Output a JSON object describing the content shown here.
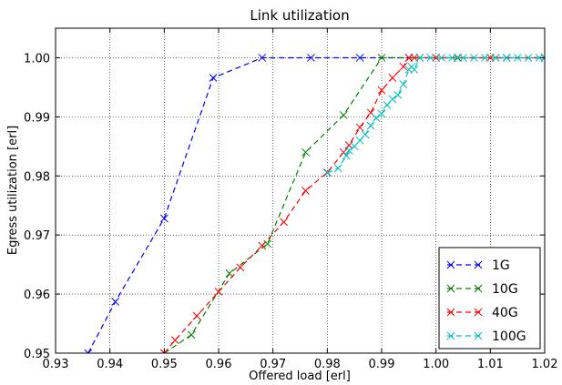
{
  "chart_data": {
    "type": "line",
    "title": "Link utilization",
    "xlabel": "Offered load [erl]",
    "ylabel": "Egress utilization [erl]",
    "xlim": [
      0.93,
      1.02
    ],
    "ylim": [
      0.95,
      1.005
    ],
    "xticks": [
      "0.93",
      "0.94",
      "0.95",
      "0.96",
      "0.97",
      "0.98",
      "0.99",
      "1.00",
      "1.01",
      "1.02"
    ],
    "yticks": [
      "0.95",
      "0.96",
      "0.97",
      "0.98",
      "0.99",
      "1.00"
    ],
    "grid": true,
    "legend_position": "bottom-right",
    "series": [
      {
        "name": "1G",
        "color": "#0000ff",
        "points": [
          [
            0.936,
            0.95
          ],
          [
            0.941,
            0.9587
          ],
          [
            0.95,
            0.9728
          ],
          [
            0.959,
            0.9966
          ],
          [
            0.968,
            1.0
          ],
          [
            0.977,
            1.0
          ],
          [
            0.986,
            1.0
          ],
          [
            0.995,
            1.0
          ],
          [
            1.004,
            1.0
          ],
          [
            1.013,
            1.0
          ],
          [
            1.02,
            1.0
          ]
        ]
      },
      {
        "name": "10G",
        "color": "#008000",
        "points": [
          [
            0.95,
            0.95
          ],
          [
            0.955,
            0.9531
          ],
          [
            0.962,
            0.9635
          ],
          [
            0.969,
            0.9685
          ],
          [
            0.976,
            0.984
          ],
          [
            0.983,
            0.9903
          ],
          [
            0.99,
            1.0
          ],
          [
            0.997,
            1.0
          ],
          [
            1.004,
            1.0
          ],
          [
            1.011,
            1.0
          ],
          [
            1.02,
            1.0
          ]
        ]
      },
      {
        "name": "40G",
        "color": "#ff0000",
        "points": [
          [
            0.95,
            0.95
          ],
          [
            0.952,
            0.9522
          ],
          [
            0.956,
            0.9563
          ],
          [
            0.96,
            0.9604
          ],
          [
            0.964,
            0.9645
          ],
          [
            0.968,
            0.9682
          ],
          [
            0.972,
            0.9722
          ],
          [
            0.976,
            0.9775
          ],
          [
            0.98,
            0.9806
          ],
          [
            0.983,
            0.984
          ],
          [
            0.984,
            0.9852
          ],
          [
            0.986,
            0.9882
          ],
          [
            0.988,
            0.9907
          ],
          [
            0.99,
            0.9945
          ],
          [
            0.992,
            0.9966
          ],
          [
            0.994,
            0.9985
          ],
          [
            0.995,
            1.0
          ],
          [
            0.996,
            1.0
          ],
          [
            1.0,
            1.0
          ],
          [
            1.01,
            1.0
          ],
          [
            1.02,
            1.0
          ]
        ]
      },
      {
        "name": "100G",
        "color": "#00bfbf",
        "points": [
          [
            0.98,
            0.9805
          ],
          [
            0.982,
            0.9813
          ],
          [
            0.9835,
            0.9834
          ],
          [
            0.984,
            0.9843
          ],
          [
            0.985,
            0.985
          ],
          [
            0.986,
            0.986
          ],
          [
            0.987,
            0.987
          ],
          [
            0.988,
            0.9885
          ],
          [
            0.989,
            0.9898
          ],
          [
            0.99,
            0.9905
          ],
          [
            0.991,
            0.992
          ],
          [
            0.992,
            0.993
          ],
          [
            0.993,
            0.9937
          ],
          [
            0.994,
            0.9955
          ],
          [
            0.995,
            0.998
          ],
          [
            0.9955,
            0.9985
          ],
          [
            0.996,
            0.998
          ],
          [
            0.997,
            1.0
          ],
          [
            0.999,
            1.0
          ],
          [
            1.001,
            1.0
          ],
          [
            1.003,
            1.0
          ],
          [
            1.005,
            1.0
          ],
          [
            1.007,
            1.0
          ],
          [
            1.009,
            1.0
          ],
          [
            1.011,
            1.0
          ],
          [
            1.013,
            1.0
          ],
          [
            1.015,
            1.0
          ],
          [
            1.017,
            1.0
          ],
          [
            1.019,
            1.0
          ],
          [
            1.02,
            1.0
          ]
        ]
      }
    ]
  }
}
